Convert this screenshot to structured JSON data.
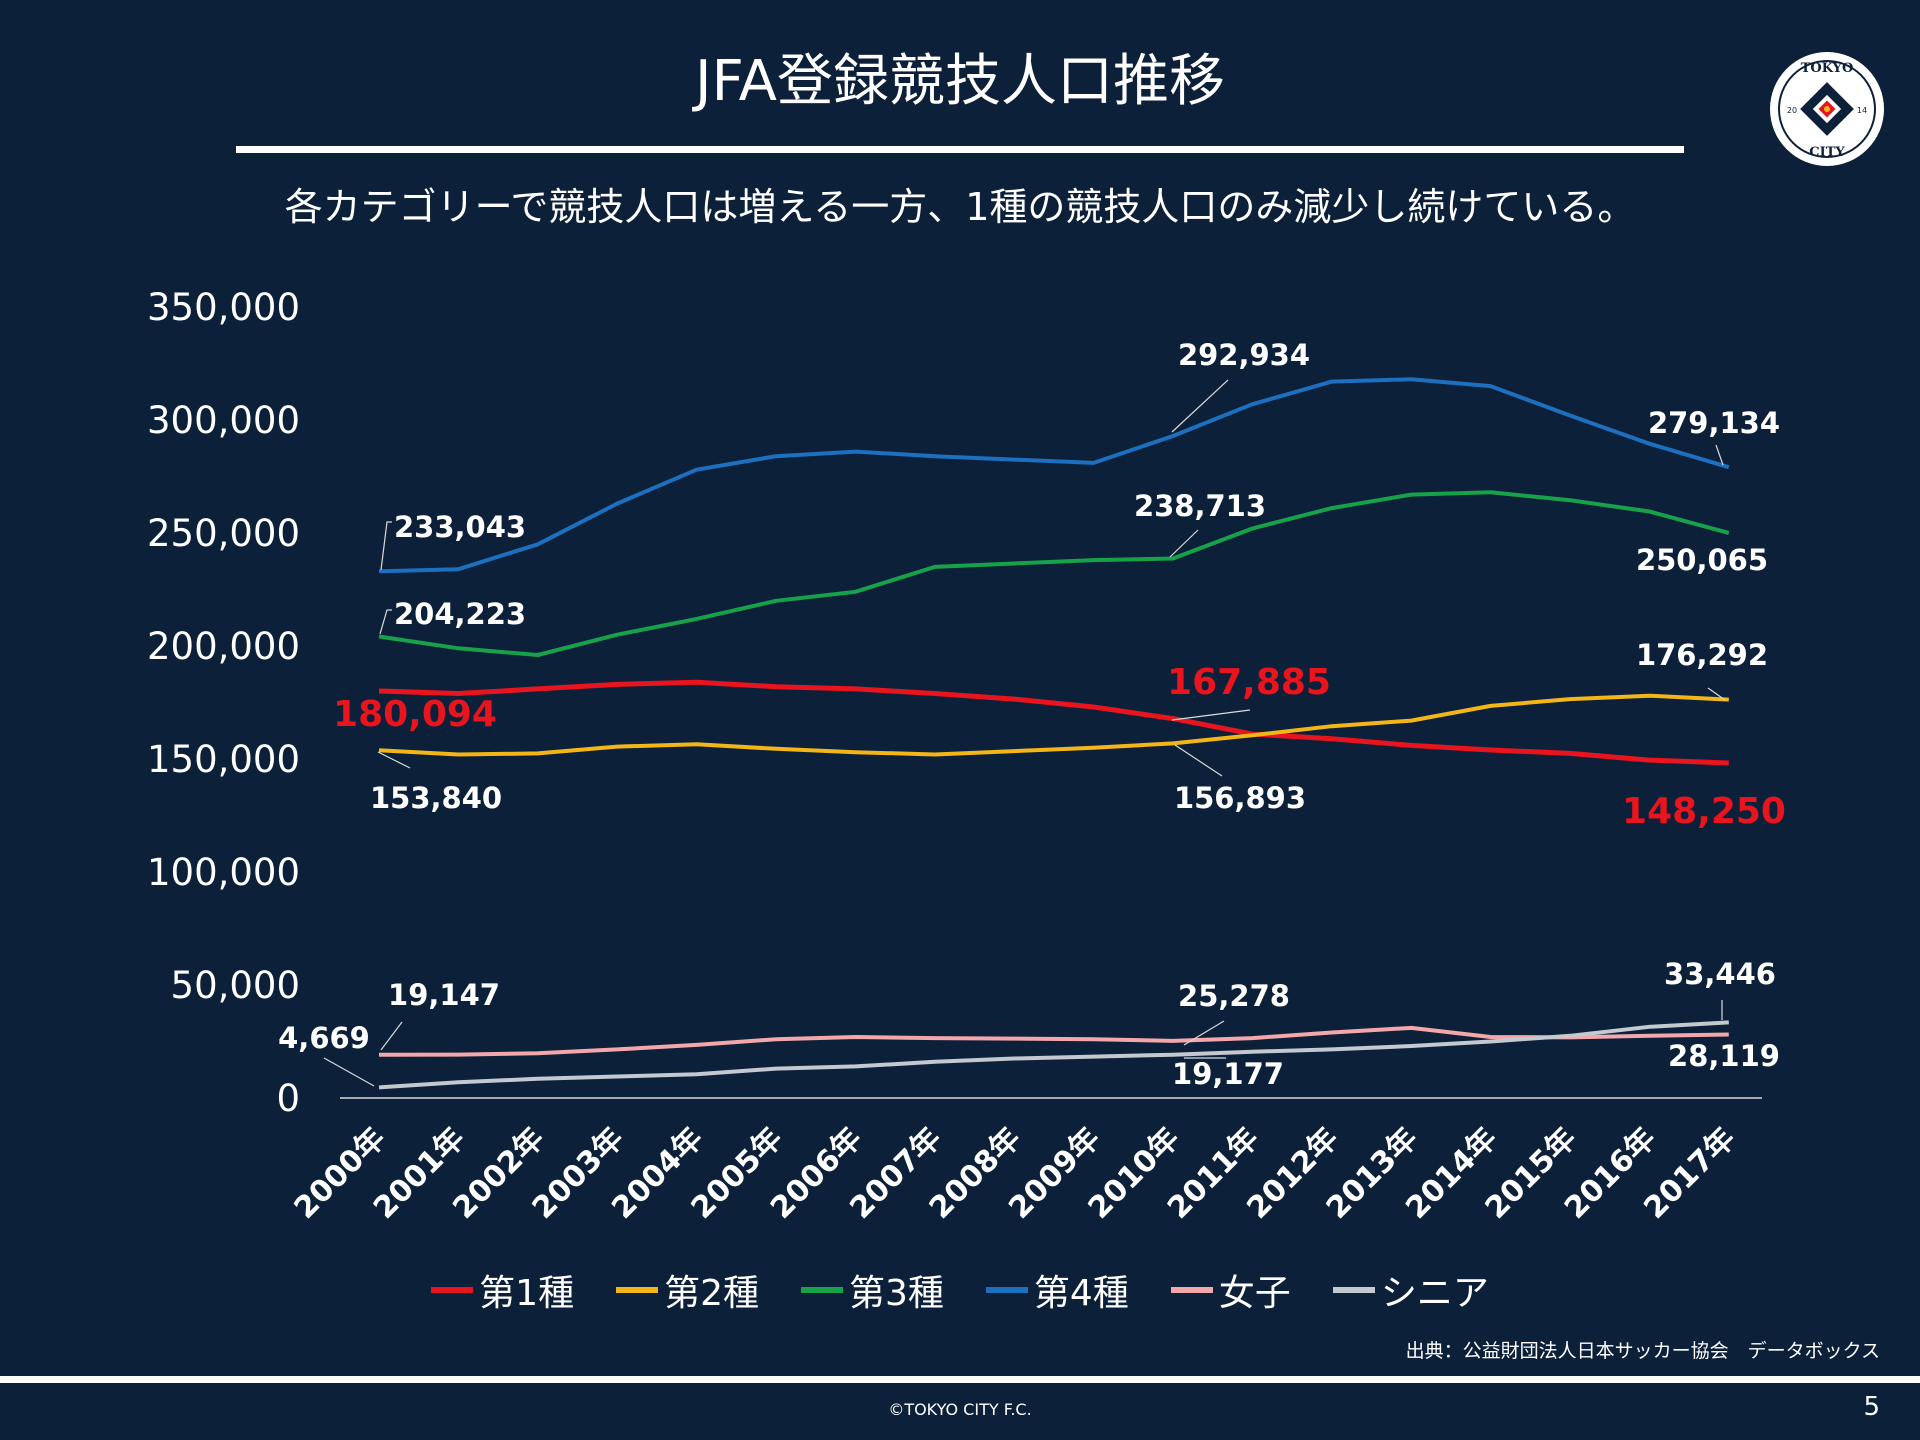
{
  "title": "JFA登録競技人口推移",
  "subtitle": "各カテゴリーで競技人口は増える一方、1種の競技人口のみ減少し続けている。",
  "logo": {
    "top_text": "TOKYO",
    "bottom_text": "CITY",
    "left_num": "20",
    "right_num": "14"
  },
  "source": "出典：公益財団法人日本サッカー協会　データボックス",
  "copyright": "©TOKYO CITY F.C.",
  "page_number": "5",
  "chart_data": {
    "type": "line",
    "title": "JFA登録競技人口推移",
    "ylim": [
      0,
      350000
    ],
    "yticks": [
      0,
      50000,
      100000,
      150000,
      200000,
      250000,
      300000,
      350000
    ],
    "ytick_labels": [
      "0",
      "50,000",
      "100,000",
      "150,000",
      "200,000",
      "250,000",
      "300,000",
      "350,000"
    ],
    "categories": [
      "2000年",
      "2001年",
      "2002年",
      "2003年",
      "2004年",
      "2005年",
      "2006年",
      "2007年",
      "2008年",
      "2009年",
      "2010年",
      "2011年",
      "2012年",
      "2013年",
      "2014年",
      "2015年",
      "2016年",
      "2017年"
    ],
    "series": [
      {
        "name": "第1種",
        "color": "#e8141e",
        "values": [
          180094,
          179000,
          181000,
          183000,
          184000,
          182000,
          181000,
          179000,
          176500,
          173000,
          167885,
          161000,
          159000,
          156000,
          154000,
          152500,
          149500,
          148250
        ]
      },
      {
        "name": "第2種",
        "color": "#f2b619",
        "values": [
          153840,
          152000,
          152500,
          155500,
          156500,
          154500,
          153000,
          152000,
          153500,
          155000,
          156893,
          160500,
          164500,
          167000,
          173500,
          176500,
          178000,
          176292
        ]
      },
      {
        "name": "第3種",
        "color": "#17a24a",
        "values": [
          204223,
          199000,
          196000,
          205000,
          212000,
          220000,
          224000,
          235000,
          236500,
          238000,
          238713,
          252000,
          261000,
          267000,
          268000,
          264500,
          259500,
          250065
        ]
      },
      {
        "name": "第4種",
        "color": "#1d6fc0",
        "values": [
          233043,
          234000,
          245000,
          263000,
          278000,
          284000,
          286000,
          284000,
          282500,
          281000,
          292934,
          307000,
          317000,
          318000,
          315000,
          302000,
          289500,
          279134
        ]
      },
      {
        "name": "女子",
        "color": "#f4a7ab",
        "values": [
          19147,
          19200,
          19800,
          21500,
          23500,
          26000,
          27000,
          26500,
          26300,
          26000,
          25278,
          26500,
          29000,
          31000,
          27000,
          26800,
          27500,
          28119
        ]
      },
      {
        "name": "シニア",
        "color": "#c4c8cf",
        "values": [
          4669,
          7000,
          8500,
          9500,
          10500,
          13000,
          14000,
          16000,
          17500,
          18300,
          19177,
          20500,
          21500,
          23000,
          25000,
          27500,
          31500,
          33446
        ]
      }
    ],
    "annotations": {
      "s1_first": "180,094",
      "s1_mid": "167,885",
      "s1_last": "148,250",
      "s2_first": "153,840",
      "s2_mid": "156,893",
      "s2_last": "176,292",
      "s3_first": "204,223",
      "s3_mid": "238,713",
      "s3_last": "250,065",
      "s4_first": "233,043",
      "s4_mid": "292,934",
      "s4_last": "279,134",
      "w_first": "19,147",
      "w_mid": "25,278",
      "w_last": "28,119",
      "sn_first": "4,669",
      "sn_mid": "19,177",
      "sn_last": "33,446"
    }
  }
}
